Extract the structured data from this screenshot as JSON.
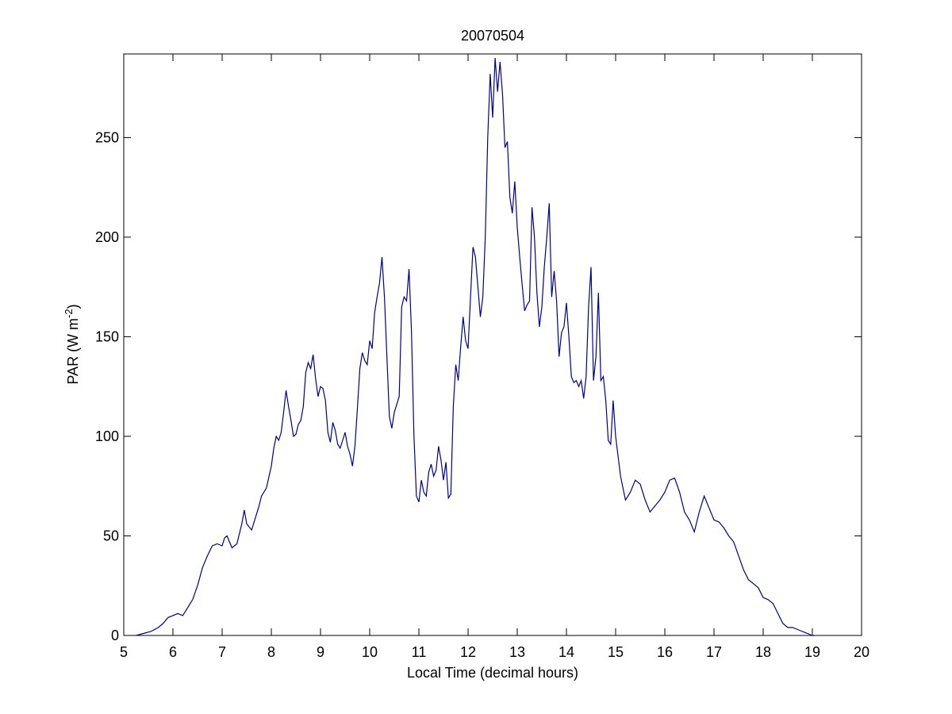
{
  "chart_data": {
    "type": "line",
    "title": "20070504",
    "xlabel": "Local Time (decimal hours)",
    "ylabel_base": "PAR (W m",
    "ylabel_sup": "-2",
    "ylabel_close": ")",
    "xlim": [
      5,
      20
    ],
    "ylim": [
      0,
      292
    ],
    "xticks": [
      5,
      6,
      7,
      8,
      9,
      10,
      11,
      12,
      13,
      14,
      15,
      16,
      17,
      18,
      19,
      20
    ],
    "yticks": [
      0,
      50,
      100,
      150,
      200,
      250
    ],
    "grid": false,
    "legend": "none",
    "line_color": "#00008b",
    "series": [
      {
        "x": [
          5.25,
          5.4,
          5.55,
          5.7,
          5.8,
          5.9,
          6.0,
          6.1,
          6.2,
          6.3,
          6.4,
          6.5,
          6.6,
          6.7,
          6.8,
          6.9,
          7.0,
          7.05,
          7.1,
          7.2,
          7.3,
          7.4,
          7.45,
          7.5,
          7.6,
          7.7,
          7.75,
          7.8,
          7.9,
          8.0,
          8.05,
          8.1,
          8.15,
          8.2,
          8.25,
          8.3,
          8.35,
          8.4,
          8.45,
          8.5,
          8.55,
          8.6,
          8.65,
          8.7,
          8.75,
          8.8,
          8.85,
          8.9,
          8.95,
          9.0,
          9.05,
          9.1,
          9.15,
          9.2,
          9.25,
          9.3,
          9.35,
          9.4,
          9.45,
          9.5,
          9.55,
          9.6,
          9.65,
          9.7,
          9.75,
          9.8,
          9.85,
          9.9,
          9.95,
          10.0,
          10.05,
          10.1,
          10.15,
          10.2,
          10.25,
          10.3,
          10.35,
          10.4,
          10.45,
          10.5,
          10.55,
          10.6,
          10.65,
          10.7,
          10.75,
          10.8,
          10.85,
          10.9,
          10.95,
          11.0,
          11.05,
          11.1,
          11.15,
          11.2,
          11.25,
          11.3,
          11.35,
          11.4,
          11.45,
          11.5,
          11.55,
          11.6,
          11.65,
          11.7,
          11.75,
          11.8,
          11.85,
          11.9,
          11.95,
          12.0,
          12.05,
          12.1,
          12.15,
          12.2,
          12.25,
          12.3,
          12.35,
          12.4,
          12.45,
          12.5,
          12.55,
          12.6,
          12.65,
          12.7,
          12.75,
          12.8,
          12.85,
          12.9,
          12.95,
          13.0,
          13.05,
          13.1,
          13.15,
          13.2,
          13.25,
          13.3,
          13.35,
          13.4,
          13.45,
          13.5,
          13.55,
          13.6,
          13.65,
          13.7,
          13.75,
          13.8,
          13.85,
          13.9,
          13.95,
          14.0,
          14.05,
          14.1,
          14.15,
          14.2,
          14.25,
          14.3,
          14.35,
          14.4,
          14.45,
          14.5,
          14.55,
          14.6,
          14.65,
          14.7,
          14.75,
          14.8,
          14.85,
          14.9,
          14.95,
          15.0,
          15.1,
          15.2,
          15.3,
          15.4,
          15.5,
          15.6,
          15.7,
          15.8,
          15.9,
          16.0,
          16.1,
          16.2,
          16.3,
          16.4,
          16.5,
          16.6,
          16.7,
          16.8,
          16.9,
          17.0,
          17.1,
          17.2,
          17.3,
          17.4,
          17.5,
          17.6,
          17.7,
          17.8,
          17.9,
          18.0,
          18.1,
          18.2,
          18.3,
          18.4,
          18.5,
          18.6,
          18.7,
          18.8,
          18.9,
          19.0,
          19.05
        ],
        "y": [
          0,
          1,
          2,
          4,
          6,
          9,
          10,
          11,
          10,
          14,
          18,
          25,
          34,
          40,
          45,
          46,
          45,
          49,
          50,
          44,
          46,
          56,
          63,
          56,
          53,
          61,
          65,
          70,
          74,
          85,
          94,
          100,
          98,
          102,
          112,
          123,
          115,
          108,
          100,
          101,
          106,
          108,
          115,
          132,
          137,
          134,
          141,
          129,
          120,
          125,
          124,
          118,
          102,
          97,
          107,
          103,
          96,
          94,
          98,
          102,
          95,
          91,
          85,
          95,
          114,
          134,
          142,
          138,
          136,
          148,
          144,
          162,
          170,
          177,
          190,
          170,
          140,
          110,
          104,
          112,
          116,
          120,
          165,
          170,
          168,
          184,
          152,
          100,
          70,
          67,
          78,
          72,
          70,
          82,
          86,
          80,
          83,
          95,
          88,
          78,
          87,
          69,
          71,
          115,
          136,
          128,
          145,
          160,
          148,
          144,
          170,
          195,
          190,
          175,
          160,
          170,
          200,
          250,
          282,
          260,
          290,
          273,
          288,
          272,
          245,
          248,
          220,
          212,
          228,
          205,
          190,
          176,
          163,
          166,
          168,
          215,
          200,
          172,
          155,
          165,
          185,
          200,
          217,
          170,
          183,
          168,
          140,
          152,
          155,
          167,
          150,
          130,
          127,
          128,
          125,
          128,
          119,
          130,
          165,
          185,
          128,
          140,
          172,
          128,
          130,
          118,
          98,
          96,
          118,
          100,
          80,
          68,
          72,
          78,
          76,
          68,
          62,
          65,
          68,
          72,
          78,
          79,
          72,
          62,
          58,
          52,
          62,
          70,
          64,
          58,
          57,
          54,
          50,
          47,
          40,
          33,
          28,
          26,
          24,
          19,
          18,
          16,
          11,
          6,
          4,
          4,
          3,
          2,
          1,
          0,
          0
        ]
      }
    ]
  }
}
